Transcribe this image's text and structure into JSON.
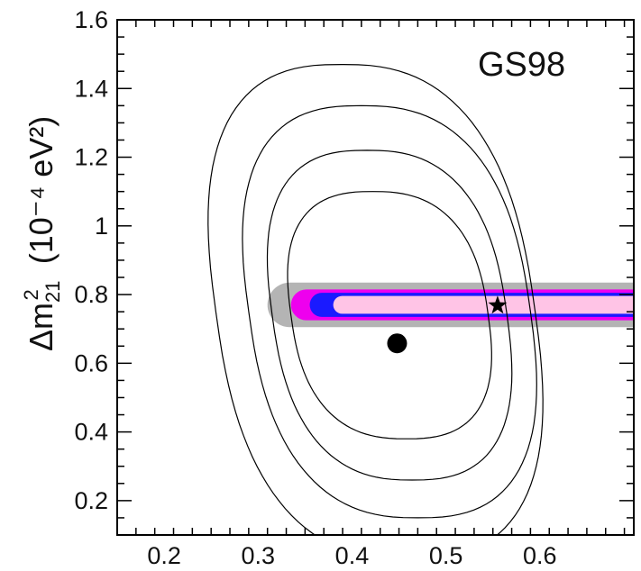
{
  "chart_data": {
    "type": "scatter",
    "title": "",
    "panel_label": "GS98",
    "xlabel": "",
    "ylabel": {
      "prefix": "Δm",
      "superscript": "2",
      "subscript": "21",
      "units": "(10⁻⁴ eV²)"
    },
    "xlim": [
      0.15,
      0.7
    ],
    "ylim": [
      0.1,
      1.6
    ],
    "x_tick_labels": [
      "0.2",
      "0.3",
      "0.4",
      "0.5",
      "0.6"
    ],
    "x_ticks": [
      0.2,
      0.3,
      0.4,
      0.5,
      0.6
    ],
    "y_tick_labels": [
      "0.2",
      "0.4",
      "0.6",
      "0.8",
      "1",
      "1.2",
      "1.4",
      "1.6"
    ],
    "y_ticks": [
      0.2,
      0.4,
      0.6,
      0.8,
      1.0,
      1.2,
      1.4,
      1.6
    ],
    "grid": false,
    "contours": [
      {
        "x_center": 0.44,
        "y_center": 0.74,
        "x_half_width": 0.105,
        "y_half_height": 0.36,
        "tilt": -0.05
      },
      {
        "x_center": 0.44,
        "y_center": 0.74,
        "x_half_width": 0.125,
        "y_half_height": 0.48,
        "tilt": -0.05
      },
      {
        "x_center": 0.44,
        "y_center": 0.75,
        "x_half_width": 0.15,
        "y_half_height": 0.6,
        "tilt": -0.05
      },
      {
        "x_center": 0.425,
        "y_center": 0.75,
        "x_half_width": 0.17,
        "y_half_height": 0.72,
        "tilt": -0.05
      }
    ],
    "bands": [
      {
        "level": "outer",
        "color": "#b4b4b4",
        "x_min": 0.31,
        "x_max": 0.7,
        "y_center": 0.77,
        "y_half_height": 0.065
      },
      {
        "level": "middle",
        "color": "#ee00ee",
        "x_min": 0.335,
        "x_max": 0.7,
        "y_center": 0.77,
        "y_half_height": 0.045
      },
      {
        "level": "inner-blue",
        "color": "#1a1aff",
        "x_min": 0.355,
        "x_max": 0.7,
        "y_center": 0.77,
        "y_half_height": 0.035
      },
      {
        "level": "core",
        "color": "#ffc4e6",
        "x_min": 0.38,
        "x_max": 0.7,
        "y_center": 0.77,
        "y_half_height": 0.026
      }
    ],
    "points": [
      {
        "marker": "circle",
        "x": 0.448,
        "y": 0.658
      },
      {
        "marker": "star",
        "x": 0.555,
        "y": 0.768
      }
    ]
  }
}
